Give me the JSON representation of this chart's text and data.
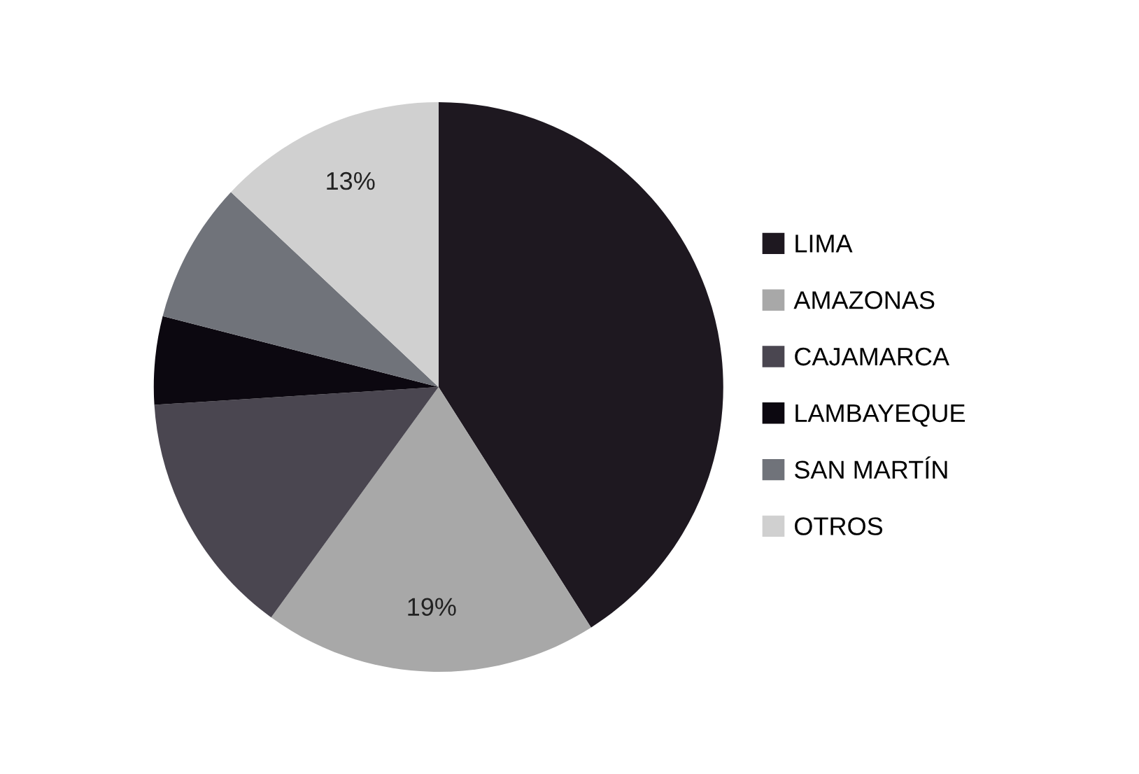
{
  "chart_data": {
    "type": "pie",
    "categories": [
      "LIMA",
      "AMAZONAS",
      "CAJAMARCA",
      "LAMBAYEQUE",
      "SAN MARTÍN",
      "OTROS"
    ],
    "values": [
      41,
      19,
      14,
      5,
      8,
      13
    ],
    "colors": [
      "#1e1820",
      "#a8a8a8",
      "#4a4650",
      "#0c0810",
      "#70737a",
      "#d0d0d0"
    ],
    "value_labels": [
      null,
      "19%",
      null,
      null,
      null,
      "13%"
    ],
    "legend": "right"
  }
}
